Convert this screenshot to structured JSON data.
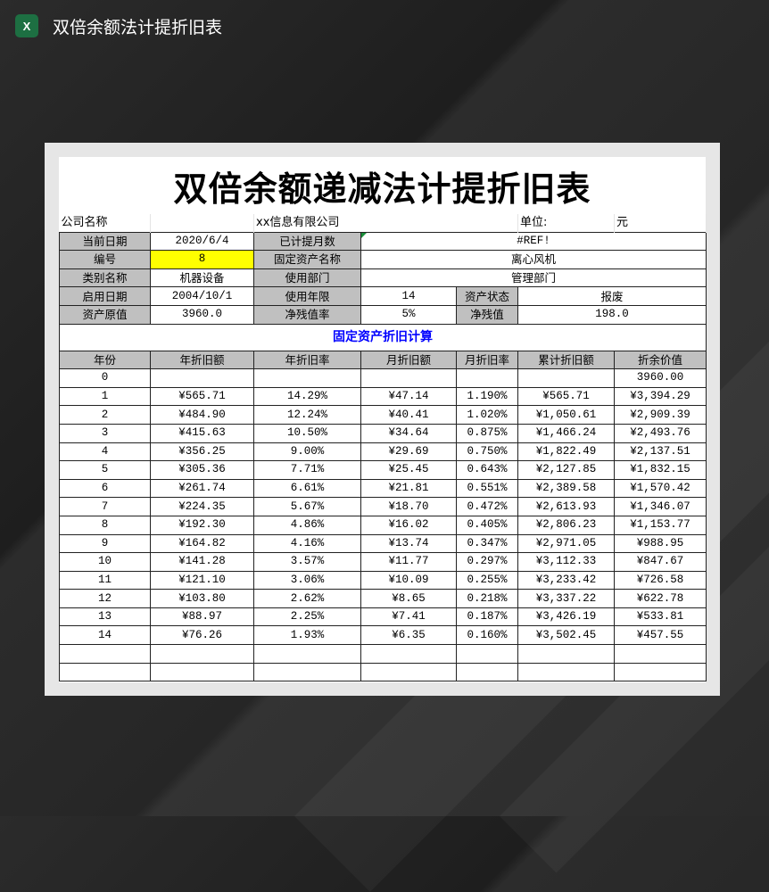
{
  "window": {
    "app_icon": "excel-icon",
    "title": "双倍余额法计提折旧表"
  },
  "sheet": {
    "title": "双倍余额递减法计提折旧表",
    "company_label": "公司名称",
    "company_value": "xx信息有限公司",
    "unit_label": "单位:",
    "unit_value": "元",
    "info": {
      "current_date_label": "当前日期",
      "current_date": "2020/6/4",
      "months_label": "已计提月数",
      "months": "#REF!",
      "number_label": "编号",
      "number": "8",
      "asset_name_label": "固定资产名称",
      "asset_name": "离心风机",
      "category_label": "类别名称",
      "category": "机器设备",
      "department_label": "使用部门",
      "department": "管理部门",
      "start_date_label": "启用日期",
      "start_date": "2004/10/1",
      "life_label": "使用年限",
      "life": "14",
      "status_label": "资产状态",
      "status": "报废",
      "original_value_label": "资产原值",
      "original_value": "3960.0",
      "residual_rate_label": "净残值率",
      "residual_rate": "5%",
      "residual_value_label": "净残值",
      "residual_value": "198.0"
    },
    "section_title": "固定资产折旧计算",
    "columns": [
      "年份",
      "年折旧额",
      "年折旧率",
      "月折旧额",
      "月折旧率",
      "累计折旧额",
      "折余价值"
    ],
    "rows": [
      [
        "0",
        "",
        "",
        "",
        "",
        "",
        "3960.00"
      ],
      [
        "1",
        "¥565.71",
        "14.29%",
        "¥47.14",
        "1.190%",
        "¥565.71",
        "¥3,394.29"
      ],
      [
        "2",
        "¥484.90",
        "12.24%",
        "¥40.41",
        "1.020%",
        "¥1,050.61",
        "¥2,909.39"
      ],
      [
        "3",
        "¥415.63",
        "10.50%",
        "¥34.64",
        "0.875%",
        "¥1,466.24",
        "¥2,493.76"
      ],
      [
        "4",
        "¥356.25",
        "9.00%",
        "¥29.69",
        "0.750%",
        "¥1,822.49",
        "¥2,137.51"
      ],
      [
        "5",
        "¥305.36",
        "7.71%",
        "¥25.45",
        "0.643%",
        "¥2,127.85",
        "¥1,832.15"
      ],
      [
        "6",
        "¥261.74",
        "6.61%",
        "¥21.81",
        "0.551%",
        "¥2,389.58",
        "¥1,570.42"
      ],
      [
        "7",
        "¥224.35",
        "5.67%",
        "¥18.70",
        "0.472%",
        "¥2,613.93",
        "¥1,346.07"
      ],
      [
        "8",
        "¥192.30",
        "4.86%",
        "¥16.02",
        "0.405%",
        "¥2,806.23",
        "¥1,153.77"
      ],
      [
        "9",
        "¥164.82",
        "4.16%",
        "¥13.74",
        "0.347%",
        "¥2,971.05",
        "¥988.95"
      ],
      [
        "10",
        "¥141.28",
        "3.57%",
        "¥11.77",
        "0.297%",
        "¥3,112.33",
        "¥847.67"
      ],
      [
        "11",
        "¥121.10",
        "3.06%",
        "¥10.09",
        "0.255%",
        "¥3,233.42",
        "¥726.58"
      ],
      [
        "12",
        "¥103.80",
        "2.62%",
        "¥8.65",
        "0.218%",
        "¥3,337.22",
        "¥622.78"
      ],
      [
        "13",
        "¥88.97",
        "2.25%",
        "¥7.41",
        "0.187%",
        "¥3,426.19",
        "¥533.81"
      ],
      [
        "14",
        "¥76.26",
        "1.93%",
        "¥6.35",
        "0.160%",
        "¥3,502.45",
        "¥457.55"
      ],
      [
        "",
        "",
        "",
        "",
        "",
        "",
        ""
      ],
      [
        "",
        "",
        "",
        "",
        "",
        "",
        ""
      ]
    ],
    "colors": {
      "header_fill": "#c0c0c0",
      "highlight_fill": "#ffff00",
      "section_title": "#0000ff"
    }
  }
}
